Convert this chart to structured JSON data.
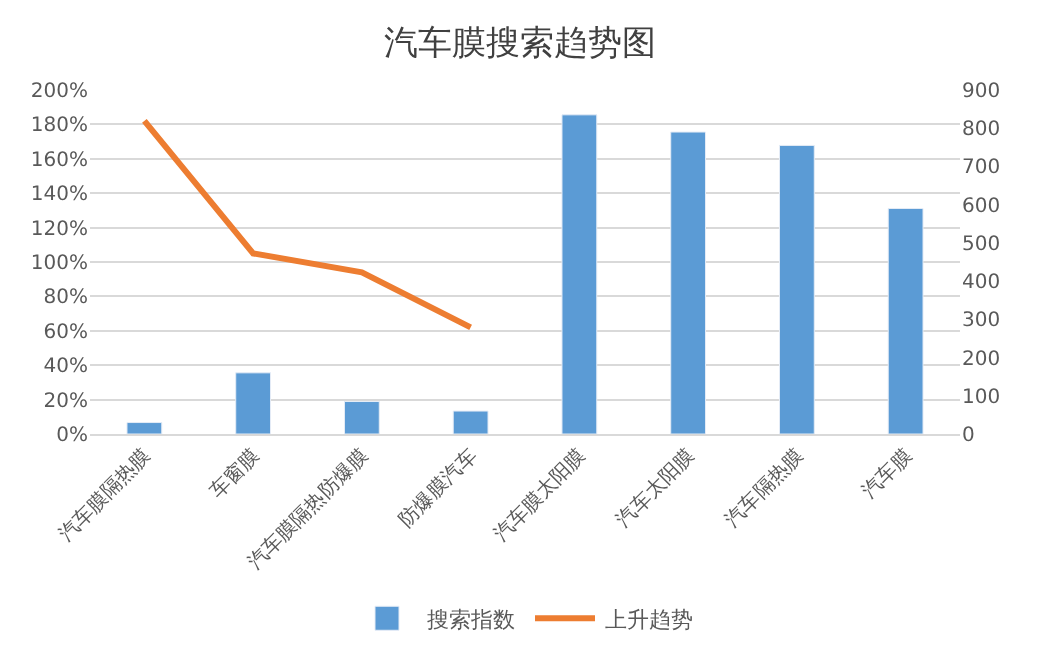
{
  "chart_data": {
    "type": "bar",
    "title": "汽车膜搜索趋势图",
    "categories": [
      "汽车膜隔热膜",
      "车窗膜",
      "汽车膜隔热防爆膜",
      "防爆膜汽车",
      "汽车膜太阳膜",
      "汽车太阳膜",
      "汽车隔热膜",
      "汽车膜"
    ],
    "series": [
      {
        "name": "搜索指数",
        "axis": "y2",
        "color": "#5b9bd5",
        "values": [
          30,
          160,
          85,
          60,
          835,
          790,
          755,
          590
        ]
      },
      {
        "name": "上升趋势",
        "type": "line",
        "color": "#ed7d31",
        "values": [
          182,
          105,
          94,
          62,
          null,
          null,
          null,
          null
        ]
      }
    ],
    "ylim": [
      0,
      200
    ],
    "yticks": [
      {
        "value": 0,
        "label": "0%"
      },
      {
        "value": 20,
        "label": "20%"
      },
      {
        "value": 40,
        "label": "40%"
      },
      {
        "value": 60,
        "label": "60%"
      },
      {
        "value": 80,
        "label": "80%"
      },
      {
        "value": 100,
        "label": "100%"
      },
      {
        "value": 120,
        "label": "120%"
      },
      {
        "value": 140,
        "label": "140%"
      },
      {
        "value": 160,
        "label": "160%"
      },
      {
        "value": 180,
        "label": "180%"
      },
      {
        "value": 200,
        "label": "200%"
      }
    ],
    "y2lim": [
      0,
      900
    ],
    "y2ticks": [
      0,
      100,
      200,
      300,
      400,
      500,
      600,
      700,
      800,
      900
    ],
    "grid": "y",
    "legend": "bottom",
    "marker": "none",
    "line_style": "solid"
  }
}
